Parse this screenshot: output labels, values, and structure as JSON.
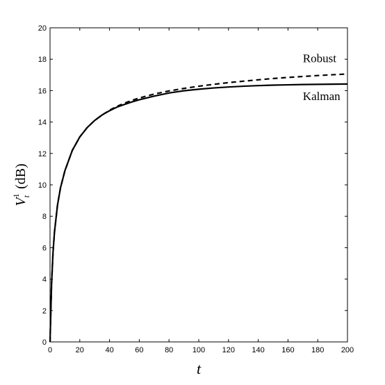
{
  "chart_data": {
    "type": "line",
    "title": "",
    "xlabel": "t",
    "ylabel": {
      "base": "V",
      "superscript": "1",
      "subscript": "t",
      "unit": "(dB)"
    },
    "xlim": [
      0,
      200
    ],
    "ylim": [
      0,
      20
    ],
    "xticks": [
      0,
      20,
      40,
      60,
      80,
      100,
      120,
      140,
      160,
      180,
      200
    ],
    "yticks": [
      0,
      2,
      4,
      6,
      8,
      10,
      12,
      14,
      16,
      18,
      20
    ],
    "grid": false,
    "legend": "none",
    "series": [
      {
        "name": "Robust",
        "style": "dashed",
        "color": "#000000",
        "x": [
          0,
          1,
          2,
          3,
          5,
          7,
          10,
          15,
          20,
          25,
          30,
          35,
          40,
          45,
          50,
          55,
          60,
          70,
          80,
          90,
          100,
          110,
          120,
          130,
          140,
          150,
          160,
          170,
          180,
          190,
          200
        ],
        "y": [
          0,
          3.6,
          5.7,
          7.0,
          8.7,
          9.8,
          10.9,
          12.2,
          13.05,
          13.65,
          14.1,
          14.45,
          14.75,
          15.0,
          15.2,
          15.38,
          15.53,
          15.78,
          15.98,
          16.14,
          16.28,
          16.4,
          16.51,
          16.6,
          16.69,
          16.77,
          16.84,
          16.9,
          16.96,
          17.01,
          17.06
        ]
      },
      {
        "name": "Kalman",
        "style": "solid",
        "color": "#000000",
        "x": [
          0,
          1,
          2,
          3,
          5,
          7,
          10,
          15,
          20,
          25,
          30,
          35,
          40,
          45,
          50,
          55,
          60,
          70,
          80,
          90,
          100,
          110,
          120,
          130,
          140,
          150,
          160,
          170,
          180,
          190,
          200
        ],
        "y": [
          0,
          3.6,
          5.7,
          7.0,
          8.7,
          9.8,
          10.9,
          12.2,
          13.05,
          13.65,
          14.1,
          14.45,
          14.72,
          14.95,
          15.12,
          15.28,
          15.42,
          15.65,
          15.85,
          15.99,
          16.09,
          16.17,
          16.23,
          16.28,
          16.32,
          16.35,
          16.37,
          16.39,
          16.4,
          16.41,
          16.42
        ]
      }
    ],
    "annotations": [
      {
        "text": "Robust",
        "x": 170,
        "y": 17.8
      },
      {
        "text": "Kalman",
        "x": 170,
        "y": 15.4
      }
    ]
  }
}
